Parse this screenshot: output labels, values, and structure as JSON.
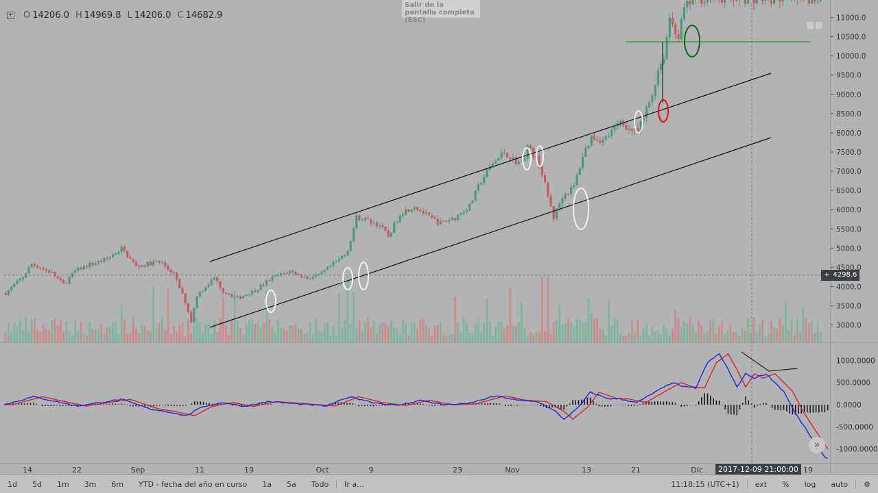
{
  "ohlc": {
    "o_label": "O",
    "o": "14206.0",
    "h_label": "H",
    "h": "14969.8",
    "l_label": "L",
    "l": "14206.0",
    "c_label": "C",
    "c": "14682.9"
  },
  "exit_fullscreen": "Salir de la pantalla completa (ESC)",
  "crosshair_price": "4298.6",
  "crosshair_date": "2017-12-09 21:00:00",
  "toolbar": {
    "ranges": [
      "1d",
      "5d",
      "1m",
      "3m",
      "6m",
      "YTD - fecha del año en curso",
      "1a",
      "5a",
      "Todo"
    ],
    "goto": "Ir a...",
    "clock": "11:18:15 (UTC+1)",
    "ext": "ext",
    "percent": "%",
    "log": "log",
    "auto": "auto"
  },
  "chart_data": [
    {
      "type": "candlestick",
      "panel": "price",
      "yticks": [
        "11000.0",
        "10500.0",
        "10000.0",
        "9500.0",
        "9000.0",
        "8500.0",
        "8000.0",
        "7500.0",
        "7000.0",
        "6500.0",
        "6000.0",
        "5500.0",
        "5000.0",
        "4500.0",
        "4000.0",
        "3500.0",
        "3000.0"
      ],
      "ytick_values": [
        11000,
        10500,
        10000,
        9500,
        9000,
        8500,
        8000,
        7500,
        7000,
        6500,
        6000,
        5500,
        5000,
        4500,
        4000,
        3500,
        3000
      ],
      "xticks": [
        "14",
        "22",
        "Sep",
        "11",
        "19",
        "Oct",
        "9",
        "23",
        "Nov",
        "13",
        "21",
        "Dic",
        "19"
      ],
      "path": [
        [
          0,
          3830
        ],
        [
          6,
          4250
        ],
        [
          9,
          4590
        ],
        [
          16,
          4350
        ],
        [
          20,
          4050
        ],
        [
          24,
          4400
        ],
        [
          28,
          4550
        ],
        [
          32,
          4640
        ],
        [
          35,
          4720
        ],
        [
          40,
          4990
        ],
        [
          45,
          4520
        ],
        [
          52,
          4640
        ],
        [
          54,
          4600
        ],
        [
          58,
          4330
        ],
        [
          62,
          3600
        ],
        [
          64,
          3090
        ],
        [
          66,
          3780
        ],
        [
          72,
          4230
        ],
        [
          75,
          3880
        ],
        [
          80,
          3700
        ],
        [
          86,
          3900
        ],
        [
          92,
          4230
        ],
        [
          98,
          4400
        ],
        [
          104,
          4220
        ],
        [
          108,
          4280
        ],
        [
          115,
          4700
        ],
        [
          118,
          4950
        ],
        [
          121,
          5800
        ],
        [
          124,
          5750
        ],
        [
          129,
          5600
        ],
        [
          132,
          5300
        ],
        [
          136,
          5900
        ],
        [
          141,
          6100
        ],
        [
          146,
          5800
        ],
        [
          150,
          5650
        ],
        [
          155,
          5800
        ],
        [
          160,
          6100
        ],
        [
          164,
          6750
        ],
        [
          168,
          7200
        ],
        [
          172,
          7500
        ],
        [
          175,
          7300
        ],
        [
          178,
          7200
        ],
        [
          180,
          7650
        ],
        [
          184,
          7200
        ],
        [
          187,
          6350
        ],
        [
          189,
          5800
        ],
        [
          192,
          6350
        ],
        [
          196,
          6600
        ],
        [
          199,
          7400
        ],
        [
          202,
          7900
        ],
        [
          206,
          7800
        ],
        [
          210,
          8100
        ],
        [
          212,
          8300
        ],
        [
          215,
          8100
        ],
        [
          218,
          8000
        ],
        [
          220,
          8400
        ],
        [
          223,
          9000
        ],
        [
          225,
          9650
        ],
        [
          227,
          10000
        ],
        [
          229,
          11000
        ],
        [
          232,
          10500
        ],
        [
          234,
          11200
        ],
        [
          237,
          11500
        ]
      ],
      "volume_hint": "bars colored green/red at bottom of price panel",
      "annotations": [
        "upper channel line",
        "lower channel line",
        "horizontal level near 10400",
        "ellipse markers at touches"
      ]
    },
    {
      "type": "line",
      "panel": "macd",
      "yticks": [
        "1000.0000",
        "500.0000",
        "0.0000",
        "-500.0000",
        "-1000.0000"
      ],
      "ytick_values": [
        1000,
        500,
        0,
        -500,
        -1000
      ],
      "series": [
        {
          "name": "MACD",
          "color": "#2323d8"
        },
        {
          "name": "Signal",
          "color": "#dd2222"
        },
        {
          "name": "Histogram",
          "color": "#111111"
        }
      ],
      "points": [
        [
          0,
          0
        ],
        [
          10,
          180
        ],
        [
          25,
          -30
        ],
        [
          40,
          120
        ],
        [
          50,
          -100
        ],
        [
          55,
          -150
        ],
        [
          62,
          -250
        ],
        [
          68,
          -40
        ],
        [
          75,
          50
        ],
        [
          82,
          -40
        ],
        [
          90,
          70
        ],
        [
          100,
          20
        ],
        [
          110,
          -30
        ],
        [
          118,
          180
        ],
        [
          126,
          50
        ],
        [
          134,
          -20
        ],
        [
          142,
          100
        ],
        [
          150,
          0
        ],
        [
          158,
          20
        ],
        [
          168,
          200
        ],
        [
          175,
          100
        ],
        [
          182,
          70
        ],
        [
          188,
          -150
        ],
        [
          191,
          -330
        ],
        [
          196,
          -60
        ],
        [
          200,
          280
        ],
        [
          206,
          140
        ],
        [
          210,
          130
        ],
        [
          216,
          50
        ],
        [
          222,
          280
        ],
        [
          228,
          500
        ],
        [
          232,
          400
        ],
        [
          236,
          380
        ],
        [
          240,
          950
        ],
        [
          244,
          1150
        ],
        [
          247,
          800
        ],
        [
          250,
          400
        ],
        [
          253,
          700
        ],
        [
          256,
          600
        ],
        [
          260,
          700
        ],
        [
          263,
          500
        ],
        [
          266,
          300
        ],
        [
          270,
          -200
        ],
        [
          276,
          -800
        ],
        [
          280,
          -1200
        ]
      ]
    }
  ],
  "colors": {
    "bg": "#b2b3b5",
    "up": "#4c9a7a",
    "down": "#c85a5a",
    "channel": "#111111",
    "level": "#2e8b2e",
    "macd": "#2323d8",
    "signal": "#dd2222"
  }
}
